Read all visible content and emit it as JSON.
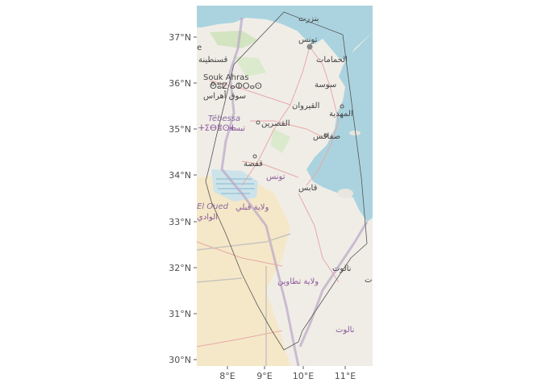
{
  "map": {
    "x_ticks": [
      "8°E",
      "9°E",
      "10°E",
      "11°E"
    ],
    "y_ticks": [
      "30°N",
      "31°N",
      "32°N",
      "33°N",
      "34°N",
      "35°N",
      "36°N",
      "37°N"
    ],
    "labels": {
      "bizerte": "بنزرت",
      "tunis": "تونس",
      "hammamet": "الحمامات",
      "sousse": "سوسة",
      "kairouan": "القيروان",
      "mahdia": "المهدية",
      "sfax": "صفاقس",
      "kasserine": "القصرين",
      "gafsa": "قفصة",
      "tunisia": "تونس",
      "gabes": "قابس",
      "kebili": "ولاية قبلي",
      "tataouine": "ولاية تطاوين",
      "nalut1": "نالوت",
      "nalut2": "نالوت",
      "souk_ahras": "Souk Ahras",
      "souk_ahras_tif": "ⵙⵓⵇ ⴰⵀⵔⴰⵙ",
      "souk_ahras_ar": "سوق أهراس",
      "tebessa": "Tébessa",
      "tebessa_tif": "ⵜⵉⴱⴻⵙⵜ",
      "tebessa_ar": "تبسة",
      "constantine": "قسنطينة",
      "el_oued": "El Oued",
      "el_oued_ar": "الوادي",
      "edge_e": "e",
      "edge_t": "ت"
    },
    "colors": {
      "sea": "#aad3df",
      "land": "#f2efe9",
      "desert": "#f5e9c9",
      "green": "#cde5b8",
      "polygon": "#555555"
    }
  }
}
